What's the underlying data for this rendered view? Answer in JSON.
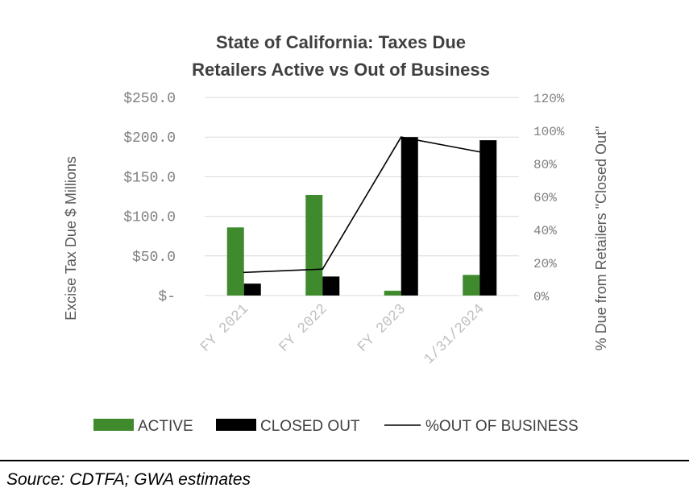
{
  "chart_data": {
    "type": "bar",
    "title": [
      "State of California:  Taxes Due",
      "Retailers Active vs Out of Business"
    ],
    "categories": [
      "FY 2021",
      "FY 2022",
      "FY 2023",
      "1/31/2024"
    ],
    "ylabel": "Excise Tax  Due $ Millions",
    "y2label": "% Due from Retailers \"Closed Out\"",
    "ylim": [
      0,
      250
    ],
    "y2lim": [
      0,
      1.2
    ],
    "yticks": [
      "$-",
      "$50.0",
      "$100.0",
      "$150.0",
      "$200.0",
      "$250.0"
    ],
    "y2ticks": [
      "0%",
      "20%",
      "40%",
      "60%",
      "80%",
      "100%",
      "120%"
    ],
    "grid": true,
    "legend_position": "bottom",
    "series": [
      {
        "name": "ACTIVE",
        "type": "bar",
        "axis": "left",
        "color": "#3e8a2c",
        "values": [
          86,
          127,
          6,
          26
        ]
      },
      {
        "name": "CLOSED OUT",
        "type": "bar",
        "axis": "left",
        "color": "#000000",
        "values": [
          15,
          24,
          200,
          196
        ]
      },
      {
        "name": "%OUT OF BUSINESS",
        "type": "line",
        "axis": "right",
        "color": "#000000",
        "values": [
          0.14,
          0.16,
          0.96,
          0.87
        ]
      }
    ]
  },
  "source": "Source: CDTFA; GWA estimates"
}
